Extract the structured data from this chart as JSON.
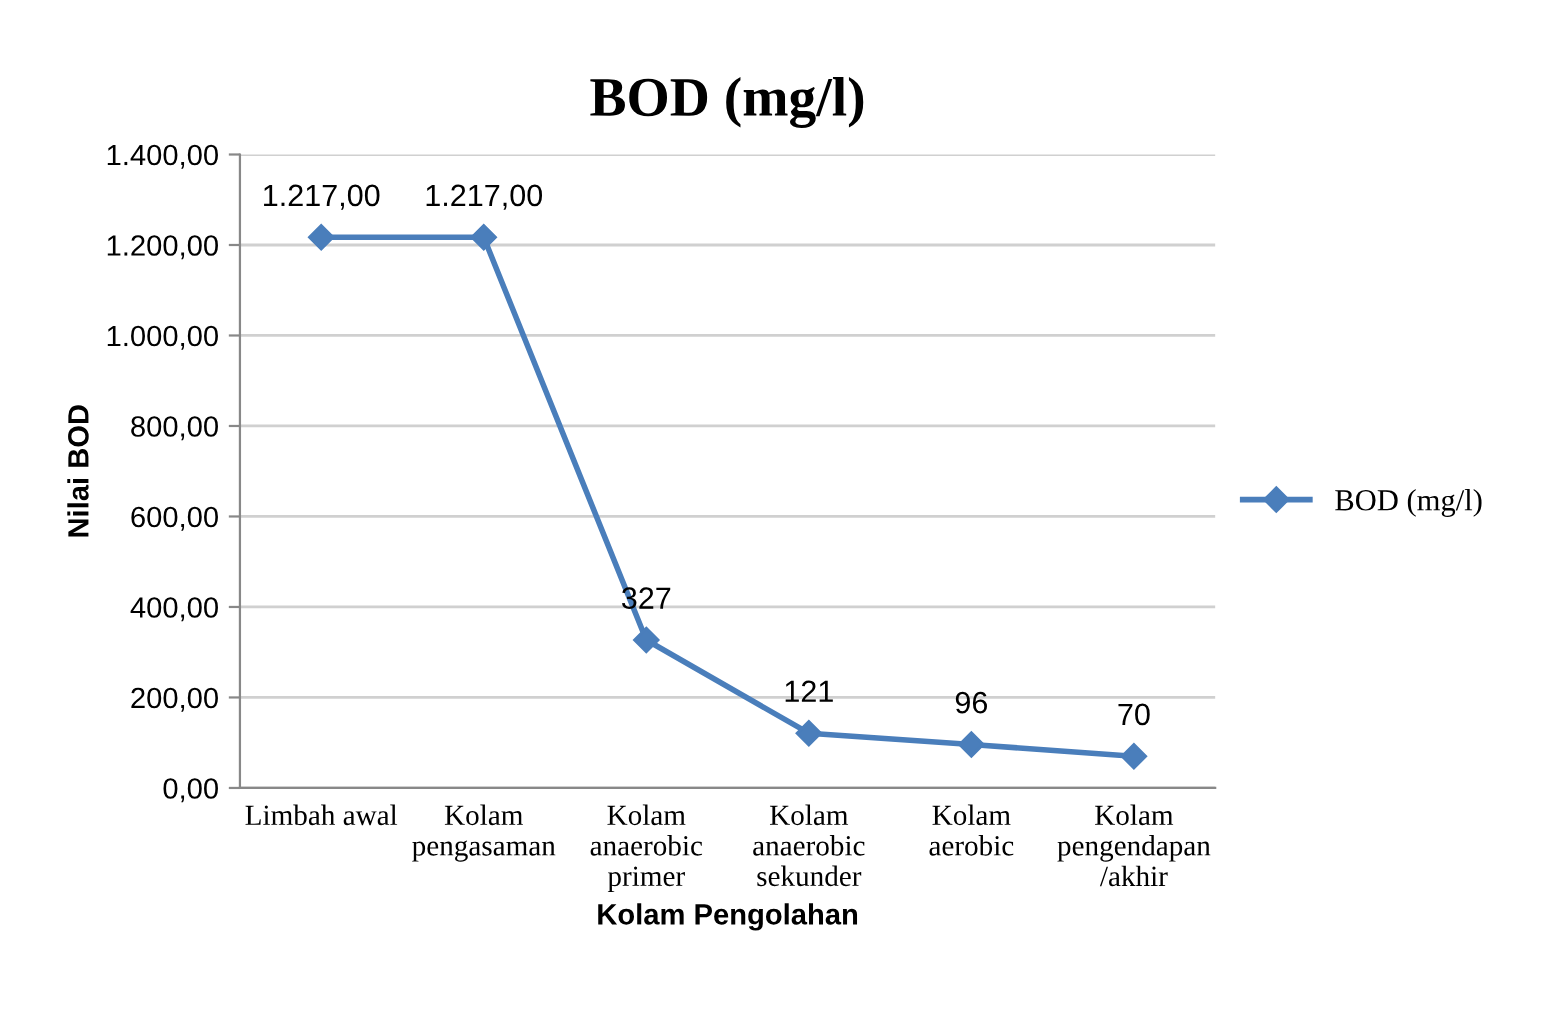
{
  "chart_data": {
    "type": "line",
    "title": "BOD (mg/l)",
    "xlabel": "Kolam Pengolahan",
    "ylabel": "Nilai BOD",
    "categories": [
      "Limbah awal",
      "Kolam\npengasaman",
      "Kolam\nanaerobic\nprimer",
      "Kolam\nanaerobic\nsekunder",
      "Kolam\naerobic",
      "Kolam\npengendapan\n/akhir"
    ],
    "series": [
      {
        "name": "BOD (mg/l)",
        "color": "#4a7ebb",
        "values": [
          1217,
          1217,
          327,
          121,
          96,
          70
        ],
        "value_labels": [
          "1.217,00",
          "1.217,00",
          "327",
          "121",
          "96",
          "70"
        ]
      }
    ],
    "ylim": [
      0,
      1400
    ],
    "yticks": [
      {
        "value": 0,
        "label": "0,00"
      },
      {
        "value": 200,
        "label": "200,00"
      },
      {
        "value": 400,
        "label": "400,00"
      },
      {
        "value": 600,
        "label": "600,00"
      },
      {
        "value": 800,
        "label": "800,00"
      },
      {
        "value": 1000,
        "label": "1.000,00"
      },
      {
        "value": 1200,
        "label": "1.200,00"
      },
      {
        "value": 1400,
        "label": "1.400,00"
      }
    ],
    "grid": "y",
    "legend": "right",
    "marker": "diamond",
    "line_style": "solid"
  }
}
